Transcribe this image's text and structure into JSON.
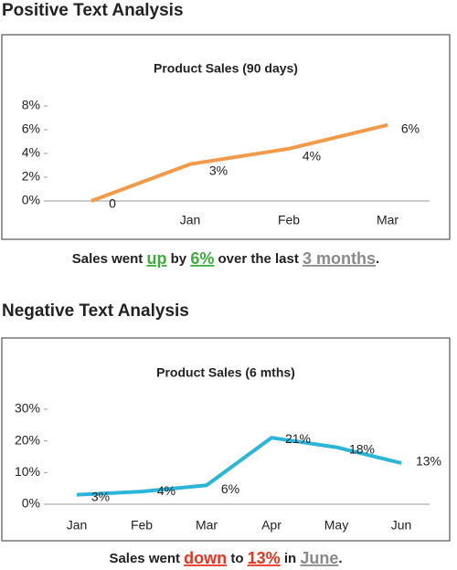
{
  "sections": [
    {
      "heading": "Positive Text Analysis",
      "caption": [
        {
          "text": "Sales went "
        },
        {
          "text": "up",
          "color": "#3cae3c"
        },
        {
          "text": " by "
        },
        {
          "text": "6%",
          "color": "#3cae3c"
        },
        {
          "text": " over the last "
        },
        {
          "text": "3 months",
          "color": "#8a8a8a"
        },
        {
          "text": "."
        }
      ]
    },
    {
      "heading": "Negative Text Analysis",
      "caption": [
        {
          "text": "Sales went "
        },
        {
          "text": "down",
          "color": "#e8331f"
        },
        {
          "text": " to "
        },
        {
          "text": "13%",
          "color": "#e8331f"
        },
        {
          "text": " in "
        },
        {
          "text": "June",
          "color": "#8a8a8a"
        },
        {
          "text": "."
        }
      ]
    }
  ],
  "chart_data": [
    {
      "type": "line",
      "title": "Product Sales (90 days)",
      "categories": [
        null,
        "Jan",
        "Feb",
        "Mar"
      ],
      "values": [
        0,
        3.1,
        4.4,
        6.4
      ],
      "value_labels": [
        "0",
        "3%",
        "4%",
        "6%"
      ],
      "color": "#f39a4a",
      "ylim": [
        0,
        8
      ],
      "yticks": [
        {
          "value": 0,
          "label": "0%"
        },
        {
          "value": 2,
          "label": "2%"
        },
        {
          "value": 4,
          "label": "4%"
        },
        {
          "value": 6,
          "label": "6%"
        },
        {
          "value": 8,
          "label": "8%"
        }
      ]
    },
    {
      "type": "line",
      "title": "Product Sales (6 mths)",
      "categories": [
        "Jan",
        "Feb",
        "Mar",
        "Apr",
        "May",
        "Jun"
      ],
      "values": [
        3,
        4,
        6,
        21,
        18,
        13
      ],
      "value_labels": [
        "3%",
        "4%",
        "6%",
        "21%",
        "18%",
        "13%"
      ],
      "color": "#2bb5d8",
      "ylim": [
        0,
        30
      ],
      "yticks": [
        {
          "value": 0,
          "label": "0%"
        },
        {
          "value": 10,
          "label": "10%"
        },
        {
          "value": 20,
          "label": "20%"
        },
        {
          "value": 30,
          "label": "30%"
        }
      ]
    }
  ]
}
